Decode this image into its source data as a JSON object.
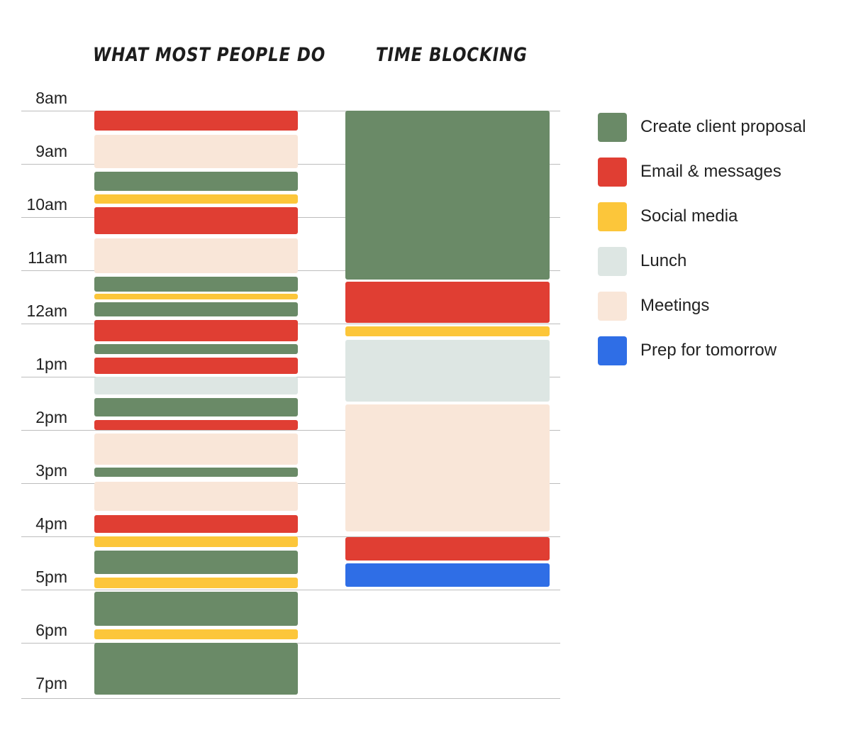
{
  "chart_data": {
    "type": "timeline",
    "column_titles": [
      "WHAT MOST PEOPLE DO",
      "TIME BLOCKING"
    ],
    "hour_labels": [
      "8am",
      "9am",
      "10am",
      "11am",
      "12am",
      "1pm",
      "2pm",
      "3pm",
      "4pm",
      "5pm",
      "6pm",
      "7pm"
    ],
    "time_range": [
      "08:00",
      "19:00"
    ],
    "categories": [
      {
        "key": "proposal",
        "name": "Create client proposal",
        "color": "#6a8a67"
      },
      {
        "key": "email",
        "name": "Email & messages",
        "color": "#e03e33"
      },
      {
        "key": "social",
        "name": "Social media",
        "color": "#fcc63a"
      },
      {
        "key": "lunch",
        "name": "Lunch",
        "color": "#dde6e3"
      },
      {
        "key": "meetings",
        "name": "Meetings",
        "color": "#f9e6d8"
      },
      {
        "key": "prep",
        "name": "Prep for tomorrow",
        "color": "#2f6ee6"
      }
    ],
    "columns": [
      {
        "blocks": [
          [
            "email",
            "08:00",
            "08:22"
          ],
          [
            "meetings",
            "08:27",
            "09:05"
          ],
          [
            "proposal",
            "09:09",
            "09:30"
          ],
          [
            "social",
            "09:34",
            "09:45"
          ],
          [
            "email",
            "09:49",
            "10:19"
          ],
          [
            "meetings",
            "10:24",
            "11:03"
          ],
          [
            "proposal",
            "11:07",
            "11:24"
          ],
          [
            "social",
            "11:26",
            "11:33"
          ],
          [
            "proposal",
            "11:36",
            "11:52"
          ],
          [
            "email",
            "11:56",
            "12:20"
          ],
          [
            "proposal",
            "12:23",
            "12:34"
          ],
          [
            "email",
            "12:38",
            "12:57"
          ],
          [
            "lunch",
            "13:00",
            "13:20"
          ],
          [
            "proposal",
            "13:24",
            "13:45"
          ],
          [
            "email",
            "13:49",
            "14:00"
          ],
          [
            "meetings",
            "14:04",
            "14:39"
          ],
          [
            "proposal",
            "14:42",
            "14:53"
          ],
          [
            "meetings",
            "14:58",
            "15:31"
          ],
          [
            "email",
            "15:36",
            "15:56"
          ],
          [
            "social",
            "16:00",
            "16:12"
          ],
          [
            "proposal",
            "16:16",
            "16:42"
          ],
          [
            "social",
            "16:46",
            "16:58"
          ],
          [
            "proposal",
            "17:02",
            "17:41"
          ],
          [
            "social",
            "17:45",
            "17:56"
          ],
          [
            "proposal",
            "18:00",
            "18:58"
          ]
        ]
      },
      {
        "blocks": [
          [
            "proposal",
            "08:00",
            "11:10"
          ],
          [
            "email",
            "11:13",
            "11:59"
          ],
          [
            "social",
            "12:03",
            "12:14"
          ],
          [
            "lunch",
            "12:18",
            "13:28"
          ],
          [
            "meetings",
            "13:31",
            "15:54"
          ],
          [
            "email",
            "16:01",
            "16:27"
          ],
          [
            "prep",
            "16:30",
            "16:57"
          ]
        ]
      }
    ]
  }
}
